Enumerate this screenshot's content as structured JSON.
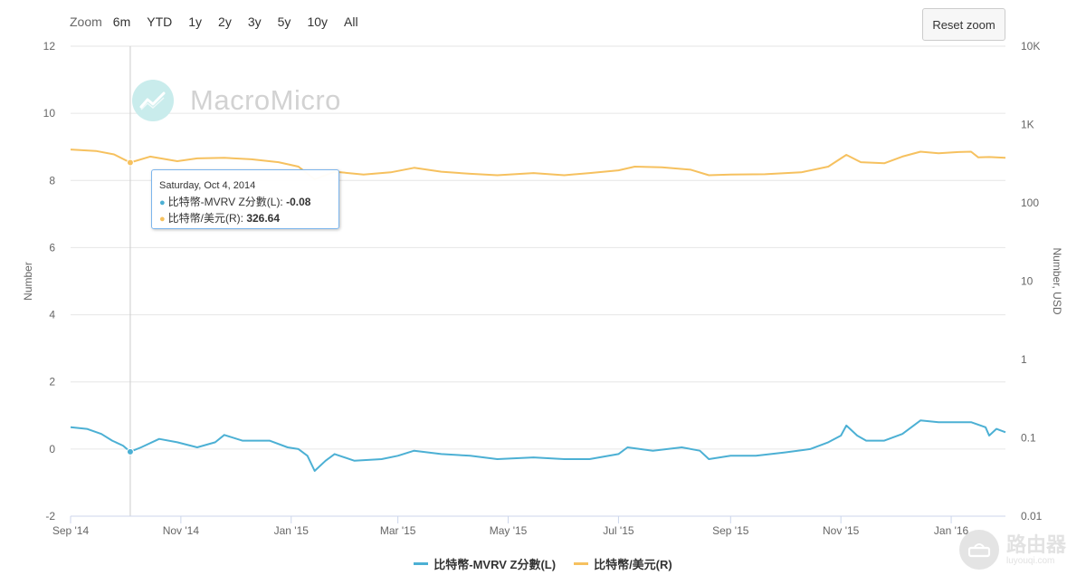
{
  "toolbar": {
    "zoom_label": "Zoom",
    "zoom_options": [
      "6m",
      "YTD",
      "1y",
      "2y",
      "3y",
      "5y",
      "10y",
      "All"
    ],
    "reset_label": "Reset zoom"
  },
  "watermark": {
    "text": "MacroMicro"
  },
  "corner_brand": {
    "text": "路由器",
    "sub": "luyouqi.com"
  },
  "tooltip": {
    "date": "Saturday, Oct 4, 2014",
    "rows": [
      {
        "label": "比特幣-MVRV Z分數(L): ",
        "value": "-0.08",
        "color": "#4cb0d4"
      },
      {
        "label": "比特幣/美元(R): ",
        "value": "326.64",
        "color": "#f6c15f"
      }
    ]
  },
  "chart_data": {
    "type": "line",
    "title": "",
    "x_range": [
      "2014-09-01",
      "2016-01-31"
    ],
    "x_ticks": [
      {
        "label": "Sep '14",
        "date": "2014-09-01"
      },
      {
        "label": "Nov '14",
        "date": "2014-11-01"
      },
      {
        "label": "Jan '15",
        "date": "2015-01-01"
      },
      {
        "label": "Mar '15",
        "date": "2015-03-01"
      },
      {
        "label": "May '15",
        "date": "2015-05-01"
      },
      {
        "label": "Jul '15",
        "date": "2015-07-01"
      },
      {
        "label": "Sep '15",
        "date": "2015-09-01"
      },
      {
        "label": "Nov '15",
        "date": "2015-11-01"
      },
      {
        "label": "Jan '16",
        "date": "2016-01-01"
      }
    ],
    "y_left": {
      "label": "Number",
      "range": [
        -2,
        12
      ],
      "ticks": [
        "-2",
        "0",
        "2",
        "4",
        "6",
        "8",
        "10",
        "12"
      ]
    },
    "y_right": {
      "label": "Number, USD",
      "scale": "log",
      "range": [
        0.01,
        10000
      ],
      "ticks": [
        "0.01",
        "0.1",
        "1",
        "10",
        "100",
        "1K",
        "10K"
      ]
    },
    "crosshair_date": "2014-10-04",
    "legend_position": "bottom-center",
    "series": [
      {
        "name": "比特幣-MVRV Z分數(L)",
        "axis": "left",
        "color": "#4cb0d4",
        "points": [
          [
            "2014-09-01",
            0.65
          ],
          [
            "2014-09-10",
            0.6
          ],
          [
            "2014-09-18",
            0.45
          ],
          [
            "2014-09-24",
            0.25
          ],
          [
            "2014-09-30",
            0.1
          ],
          [
            "2014-10-04",
            -0.08
          ],
          [
            "2014-10-10",
            0.05
          ],
          [
            "2014-10-20",
            0.3
          ],
          [
            "2014-10-30",
            0.2
          ],
          [
            "2014-11-10",
            0.05
          ],
          [
            "2014-11-20",
            0.2
          ],
          [
            "2014-11-25",
            0.42
          ],
          [
            "2014-12-05",
            0.25
          ],
          [
            "2014-12-20",
            0.25
          ],
          [
            "2014-12-30",
            0.05
          ],
          [
            "2015-01-05",
            0.0
          ],
          [
            "2015-01-10",
            -0.2
          ],
          [
            "2015-01-14",
            -0.65
          ],
          [
            "2015-01-20",
            -0.35
          ],
          [
            "2015-01-25",
            -0.15
          ],
          [
            "2015-02-05",
            -0.35
          ],
          [
            "2015-02-20",
            -0.3
          ],
          [
            "2015-03-01",
            -0.2
          ],
          [
            "2015-03-10",
            -0.05
          ],
          [
            "2015-03-25",
            -0.15
          ],
          [
            "2015-04-10",
            -0.2
          ],
          [
            "2015-04-25",
            -0.3
          ],
          [
            "2015-05-15",
            -0.25
          ],
          [
            "2015-06-01",
            -0.3
          ],
          [
            "2015-06-15",
            -0.3
          ],
          [
            "2015-07-01",
            -0.15
          ],
          [
            "2015-07-06",
            0.05
          ],
          [
            "2015-07-20",
            -0.05
          ],
          [
            "2015-08-05",
            0.05
          ],
          [
            "2015-08-15",
            -0.05
          ],
          [
            "2015-08-20",
            -0.3
          ],
          [
            "2015-09-01",
            -0.2
          ],
          [
            "2015-09-15",
            -0.2
          ],
          [
            "2015-10-01",
            -0.1
          ],
          [
            "2015-10-15",
            0.0
          ],
          [
            "2015-10-25",
            0.2
          ],
          [
            "2015-11-01",
            0.4
          ],
          [
            "2015-11-04",
            0.7
          ],
          [
            "2015-11-10",
            0.4
          ],
          [
            "2015-11-15",
            0.25
          ],
          [
            "2015-11-25",
            0.25
          ],
          [
            "2015-12-05",
            0.45
          ],
          [
            "2015-12-15",
            0.85
          ],
          [
            "2015-12-25",
            0.8
          ],
          [
            "2016-01-05",
            0.8
          ],
          [
            "2016-01-12",
            0.8
          ],
          [
            "2016-01-20",
            0.65
          ],
          [
            "2016-01-22",
            0.4
          ],
          [
            "2016-01-26",
            0.6
          ],
          [
            "2016-01-31",
            0.5
          ]
        ]
      },
      {
        "name": "比特幣/美元(R)",
        "axis": "right",
        "color": "#f6c15f",
        "points": [
          [
            "2014-09-01",
            480
          ],
          [
            "2014-09-15",
            460
          ],
          [
            "2014-09-25",
            415
          ],
          [
            "2014-10-04",
            326.64
          ],
          [
            "2014-10-15",
            390
          ],
          [
            "2014-10-30",
            340
          ],
          [
            "2014-11-10",
            370
          ],
          [
            "2014-11-25",
            375
          ],
          [
            "2014-12-10",
            360
          ],
          [
            "2014-12-25",
            330
          ],
          [
            "2015-01-05",
            290
          ],
          [
            "2015-01-14",
            200
          ],
          [
            "2015-01-25",
            250
          ],
          [
            "2015-02-10",
            230
          ],
          [
            "2015-02-25",
            245
          ],
          [
            "2015-03-10",
            280
          ],
          [
            "2015-03-25",
            250
          ],
          [
            "2015-04-10",
            235
          ],
          [
            "2015-04-25",
            225
          ],
          [
            "2015-05-15",
            240
          ],
          [
            "2015-06-01",
            225
          ],
          [
            "2015-06-15",
            240
          ],
          [
            "2015-07-01",
            260
          ],
          [
            "2015-07-10",
            290
          ],
          [
            "2015-07-25",
            285
          ],
          [
            "2015-08-10",
            265
          ],
          [
            "2015-08-20",
            225
          ],
          [
            "2015-09-01",
            230
          ],
          [
            "2015-09-20",
            232
          ],
          [
            "2015-10-10",
            245
          ],
          [
            "2015-10-25",
            290
          ],
          [
            "2015-11-04",
            410
          ],
          [
            "2015-11-12",
            330
          ],
          [
            "2015-11-25",
            320
          ],
          [
            "2015-12-05",
            390
          ],
          [
            "2015-12-15",
            450
          ],
          [
            "2015-12-25",
            430
          ],
          [
            "2016-01-05",
            445
          ],
          [
            "2016-01-12",
            450
          ],
          [
            "2016-01-16",
            380
          ],
          [
            "2016-01-22",
            385
          ],
          [
            "2016-01-31",
            375
          ]
        ]
      }
    ]
  }
}
